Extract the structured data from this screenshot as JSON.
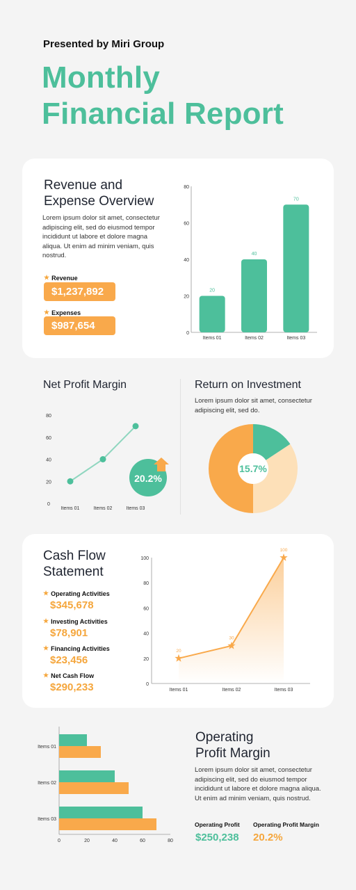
{
  "header": {
    "presented_by": "Presented by Miri Group",
    "title_line1": "Monthly",
    "title_line2": "Financial Report"
  },
  "revenue_section": {
    "title_line1": "Revenue and",
    "title_line2": "Expense Overview",
    "body": "Lorem ipsum dolor sit amet, consectetur adipiscing elit, sed do eiusmod tempor incididunt ut labore et dolore magna aliqua. Ut enim ad minim veniam, quis nostrud.",
    "revenue_label": "Revenue",
    "revenue_value": "$1,237,892",
    "expenses_label": "Expenses",
    "expenses_value": "$987,654"
  },
  "net_profit": {
    "title": "Net Profit Margin",
    "badge_value": "20.2%"
  },
  "roi": {
    "title": "Return on Investment",
    "body": "Lorem ipsum dolor sit amet, consectetur adipiscing elit, sed do.",
    "center_value": "15.7%"
  },
  "cash_flow": {
    "title_line1": "Cash Flow",
    "title_line2": "Statement",
    "items": [
      {
        "label": "Operating Activities",
        "value": "$345,678"
      },
      {
        "label": "Investing Activities",
        "value": "$78,901"
      },
      {
        "label": "Financing Activities",
        "value": "$23,456"
      },
      {
        "label": "Net Cash Flow",
        "value": "$290,233"
      }
    ]
  },
  "operating": {
    "title_line1": "Operating",
    "title_line2": "Profit Margin",
    "body": "Lorem ipsum dolor sit amet, consectetur adipiscing elit, sed do eiusmod tempor incididunt ut labore et dolore magna aliqua. Ut enim ad minim veniam, quis nostrud.",
    "profit_label": "Operating Profit",
    "profit_value": "$250,238",
    "margin_label": "Operating Profit Margin",
    "margin_value": "20.2%"
  },
  "colors": {
    "teal": "#4dbf9b",
    "orange": "#f9a94b",
    "light_orange": "#fde0b8"
  },
  "chart_data": [
    {
      "type": "bar",
      "categories": [
        "Items 01",
        "Items 02",
        "Items 03"
      ],
      "values": [
        20,
        40,
        70
      ],
      "ylim": [
        0,
        80
      ],
      "yticks": [
        0,
        20,
        40,
        60,
        80
      ],
      "data_labels": true
    },
    {
      "type": "line",
      "categories": [
        "Items 01",
        "Items 02",
        "Items 03"
      ],
      "values": [
        20,
        40,
        70
      ],
      "ylim": [
        0,
        80
      ],
      "yticks": [
        0,
        20,
        40,
        60,
        80
      ]
    },
    {
      "type": "pie",
      "values": [
        15.7,
        34.3,
        50
      ],
      "colors": [
        "#4dbf9b",
        "#fde0b8",
        "#f9a94b"
      ],
      "center_label": "15.7%"
    },
    {
      "type": "area",
      "categories": [
        "Items 01",
        "Items 02",
        "Items 03"
      ],
      "values": [
        20,
        30,
        100
      ],
      "ylim": [
        0,
        100
      ],
      "yticks": [
        0,
        20,
        40,
        60,
        80,
        100
      ],
      "data_labels": true
    },
    {
      "type": "bar",
      "orientation": "horizontal",
      "categories": [
        "Items 01",
        "Items 02",
        "Items 03"
      ],
      "series": [
        {
          "values": [
            20,
            40,
            60
          ],
          "color": "#4dbf9b"
        },
        {
          "values": [
            30,
            50,
            70
          ],
          "color": "#f9a94b"
        }
      ],
      "xlim": [
        0,
        80
      ],
      "xticks": [
        0,
        20,
        40,
        60,
        80
      ]
    }
  ]
}
